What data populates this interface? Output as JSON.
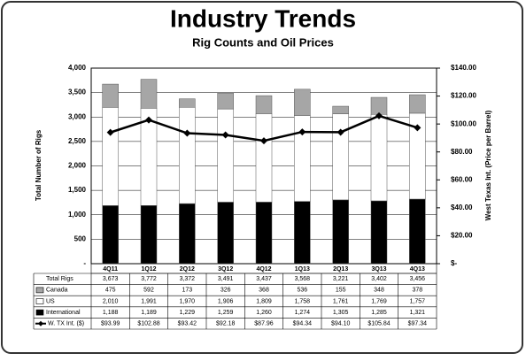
{
  "chart_data": {
    "type": "bar",
    "stacked": true,
    "title": "Industry Trends",
    "subtitle": "Rig Counts and Oil Prices",
    "y_label": "Total Number of Rigs",
    "y2_label": "West Texas Int. (Price per Barrel)",
    "categories": [
      "4Q11",
      "1Q12",
      "2Q12",
      "3Q12",
      "4Q12",
      "1Q13",
      "2Q13",
      "3Q13",
      "4Q13"
    ],
    "totals": {
      "name": "Total Rigs",
      "values": [
        3673,
        3772,
        3372,
        3491,
        3437,
        3568,
        3221,
        3402,
        3456
      ],
      "value_labels": [
        "3,673",
        "3,772",
        "3,372",
        "3,491",
        "3,437",
        "3,568",
        "3,221",
        "3,402",
        "3,456"
      ]
    },
    "series": [
      {
        "name": "Canada",
        "type": "bar",
        "color": "#a6a6a6",
        "values": [
          475,
          592,
          173,
          326,
          368,
          536,
          155,
          348,
          378
        ]
      },
      {
        "name": "US",
        "type": "bar",
        "color": "#ffffff",
        "values": [
          2010,
          1991,
          1970,
          1906,
          1809,
          1758,
          1761,
          1769,
          1757
        ],
        "value_labels": [
          "2,010",
          "1,991",
          "1,970",
          "1,906",
          "1,809",
          "1,758",
          "1,761",
          "1,769",
          "1,757"
        ]
      },
      {
        "name": "International",
        "type": "bar",
        "color": "#000000",
        "values": [
          1188,
          1189,
          1229,
          1259,
          1260,
          1274,
          1305,
          1285,
          1321
        ],
        "value_labels": [
          "1,188",
          "1,189",
          "1,229",
          "1,259",
          "1,260",
          "1,274",
          "1,305",
          "1,285",
          "1,321"
        ]
      },
      {
        "name": "W. TX Int. ($)",
        "type": "line",
        "axis": "y2",
        "color": "#000000",
        "values": [
          93.99,
          102.88,
          93.42,
          92.18,
          87.96,
          94.34,
          94.1,
          105.84,
          97.34
        ],
        "value_labels": [
          "$93.99",
          "$102.88",
          "$93.42",
          "$92.18",
          "$87.96",
          "$94.34",
          "$94.10",
          "$105.84",
          "$97.34"
        ]
      }
    ],
    "ylim": [
      0,
      4000
    ],
    "yticks": [
      {
        "value": 0,
        "label": "-"
      },
      500,
      {
        "value": 1000,
        "label": "1,000"
      },
      {
        "value": 1500,
        "label": "1,500"
      },
      {
        "value": 2000,
        "label": "2,000"
      },
      {
        "value": 2500,
        "label": "2,500"
      },
      {
        "value": 3000,
        "label": "3,000"
      },
      {
        "value": 3500,
        "label": "3,500"
      },
      {
        "value": 4000,
        "label": "4,000"
      }
    ],
    "y2lim": [
      0,
      140
    ],
    "y2ticks": [
      {
        "value": 0,
        "label": "$-"
      },
      {
        "value": 20,
        "label": "$20.00"
      },
      {
        "value": 40,
        "label": "$40.00"
      },
      {
        "value": 60,
        "label": "$60.00"
      },
      {
        "value": 80,
        "label": "$80.00"
      },
      {
        "value": 100,
        "label": "$100.00"
      },
      {
        "value": 120,
        "label": "$120.00"
      },
      {
        "value": 140,
        "label": "$140.00"
      }
    ],
    "grid": true
  }
}
